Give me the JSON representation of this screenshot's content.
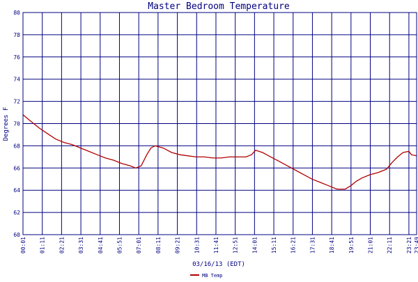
{
  "chart_data": {
    "type": "line",
    "title": "Master Bedroom Temperature",
    "xlabel": "03/16/13 (EDT)",
    "ylabel": "Degrees F",
    "ylim": [
      60,
      80
    ],
    "yticks": [
      60,
      62,
      64,
      66,
      68,
      70,
      72,
      74,
      76,
      78,
      80
    ],
    "xlim": [
      "00:01",
      "23:49"
    ],
    "xticks": [
      "00:01",
      "01:11",
      "02:21",
      "03:31",
      "04:41",
      "05:51",
      "07:01",
      "08:11",
      "09:21",
      "10:31",
      "11:41",
      "12:51",
      "14:01",
      "15:11",
      "16:21",
      "17:31",
      "18:41",
      "19:51",
      "21:01",
      "22:11",
      "23:21",
      "23:49"
    ],
    "grid": true,
    "legend_position": "bottom-left",
    "colors": {
      "grid": "#000080",
      "text": "#000080",
      "series": "#b00000"
    },
    "series": [
      {
        "name": "MB Temp",
        "points": [
          [
            "00:01",
            70.8
          ],
          [
            "00:20",
            70.4
          ],
          [
            "00:40",
            70.0
          ],
          [
            "01:00",
            69.6
          ],
          [
            "01:30",
            69.1
          ],
          [
            "02:00",
            68.6
          ],
          [
            "02:30",
            68.3
          ],
          [
            "03:00",
            68.1
          ],
          [
            "03:30",
            67.8
          ],
          [
            "04:00",
            67.5
          ],
          [
            "04:30",
            67.2
          ],
          [
            "05:00",
            66.9
          ],
          [
            "05:30",
            66.7
          ],
          [
            "06:00",
            66.4
          ],
          [
            "06:30",
            66.2
          ],
          [
            "06:50",
            66.0
          ],
          [
            "07:10",
            66.2
          ],
          [
            "07:30",
            67.2
          ],
          [
            "07:45",
            67.8
          ],
          [
            "08:00",
            68.0
          ],
          [
            "08:30",
            67.8
          ],
          [
            "09:00",
            67.4
          ],
          [
            "09:30",
            67.2
          ],
          [
            "10:00",
            67.1
          ],
          [
            "10:30",
            67.0
          ],
          [
            "11:00",
            67.0
          ],
          [
            "11:30",
            66.9
          ],
          [
            "12:00",
            66.9
          ],
          [
            "12:30",
            67.0
          ],
          [
            "13:00",
            67.0
          ],
          [
            "13:30",
            67.0
          ],
          [
            "13:50",
            67.2
          ],
          [
            "14:05",
            67.6
          ],
          [
            "14:30",
            67.4
          ],
          [
            "15:00",
            67.0
          ],
          [
            "15:30",
            66.6
          ],
          [
            "16:00",
            66.2
          ],
          [
            "16:30",
            65.8
          ],
          [
            "17:00",
            65.4
          ],
          [
            "17:30",
            65.0
          ],
          [
            "18:00",
            64.7
          ],
          [
            "18:30",
            64.4
          ],
          [
            "19:00",
            64.1
          ],
          [
            "19:30",
            64.1
          ],
          [
            "19:50",
            64.4
          ],
          [
            "20:10",
            64.8
          ],
          [
            "20:30",
            65.1
          ],
          [
            "21:00",
            65.4
          ],
          [
            "21:30",
            65.6
          ],
          [
            "22:00",
            65.9
          ],
          [
            "22:20",
            66.5
          ],
          [
            "22:40",
            67.0
          ],
          [
            "23:00",
            67.4
          ],
          [
            "23:21",
            67.5
          ],
          [
            "23:30",
            67.2
          ],
          [
            "23:49",
            67.1
          ]
        ]
      }
    ]
  }
}
